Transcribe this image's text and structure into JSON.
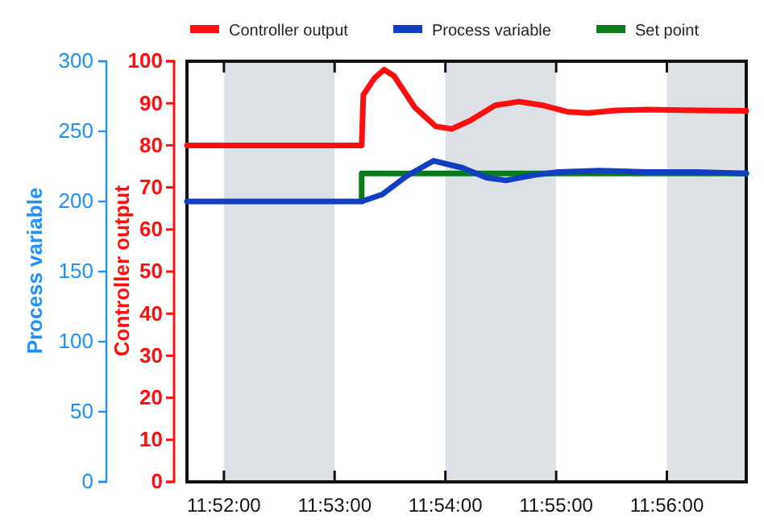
{
  "chart_data": {
    "type": "line",
    "xlim": [
      11.86111,
      11.94528
    ],
    "xticks": [
      {
        "value": 11.86667,
        "label": "11:52:00"
      },
      {
        "value": 11.88333,
        "label": "11:53:00"
      },
      {
        "value": 11.9,
        "label": "11:54:00"
      },
      {
        "value": 11.91667,
        "label": "11:55:00"
      },
      {
        "value": 11.93333,
        "label": "11:56:00"
      }
    ],
    "ylabel": "Controller output",
    "ylim": [
      0,
      100
    ],
    "yticks": [
      0,
      10,
      20,
      30,
      40,
      50,
      60,
      70,
      80,
      90,
      100
    ],
    "y2label": "Process variable",
    "y2lim": [
      0,
      300
    ],
    "y2ticks": [
      0,
      50,
      100,
      150,
      200,
      250,
      300
    ],
    "legend": "top",
    "grid": false,
    "line_style": "solid",
    "marker": "none",
    "bands": [
      {
        "axis": "x",
        "from": 11.86667,
        "to": 11.88333,
        "color": "#dde1e6"
      },
      {
        "axis": "x",
        "from": 11.9,
        "to": 11.91667,
        "color": "#dde1e6"
      },
      {
        "axis": "x",
        "from": 11.93333,
        "to": 11.94528,
        "color": "#dde1e6"
      }
    ],
    "series": [
      {
        "name": "Controller output",
        "color": "#ff1010",
        "x": [
          11.86111,
          11.8874,
          11.88765,
          11.88934,
          11.89079,
          11.89227,
          11.89541,
          11.89855,
          11.90097,
          11.90386,
          11.90749,
          11.91111,
          11.91473,
          11.91836,
          11.9215,
          11.9256,
          11.93043,
          11.93768,
          11.94528
        ],
        "values": [
          80,
          80,
          92,
          96,
          98,
          96.5,
          89,
          84.5,
          83.9,
          86,
          89.5,
          90.4,
          89.5,
          88,
          87.7,
          88.3,
          88.5,
          88.3,
          88.2
        ]
      },
      {
        "name": "Process variable",
        "color": "#1040c0",
        "axis": "y2",
        "x": [
          11.86111,
          11.8874,
          11.8905,
          11.89412,
          11.89823,
          11.90258,
          11.9062,
          11.90911,
          11.91345,
          11.91707,
          11.92311,
          11.93035,
          11.93768,
          11.94528
        ],
        "values": [
          200,
          200,
          205,
          218,
          229,
          224,
          217,
          215,
          219,
          221,
          222,
          221,
          221,
          220
        ]
      },
      {
        "name": "Set point",
        "color": "#0a7a1a",
        "axis": "y2",
        "x": [
          11.8874,
          11.8874,
          11.94528
        ],
        "values": [
          200,
          220,
          220
        ]
      }
    ]
  }
}
